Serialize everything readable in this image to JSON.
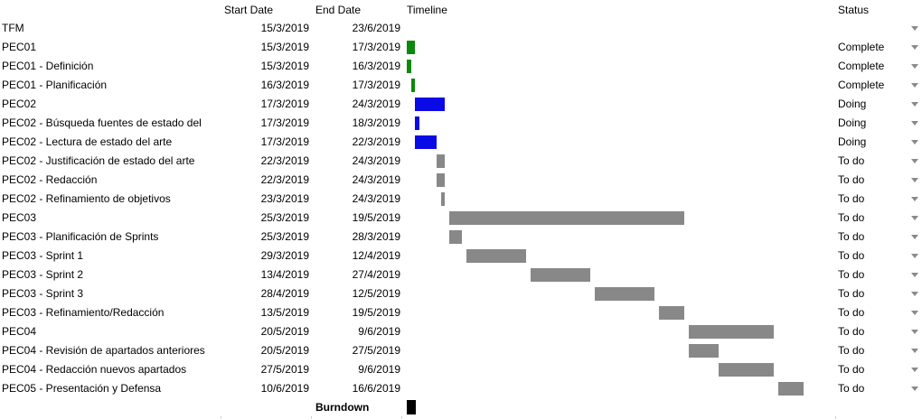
{
  "headers": {
    "start": "Start Date",
    "end": "End Date",
    "timeline": "Timeline",
    "status": "Status"
  },
  "timeline_start": "15/3/2019",
  "colors": {
    "complete": "#0a8a0a",
    "doing": "#0a0ae6",
    "todo": "#888888"
  },
  "rows": [
    {
      "name": "TFM",
      "start": "15/3/2019",
      "end": "23/6/2019",
      "status": "",
      "dropdown": true
    },
    {
      "name": "PEC01",
      "start": "15/3/2019",
      "end": "17/3/2019",
      "status": "Complete",
      "dropdown": true
    },
    {
      "name": "PEC01 - Definición",
      "start": "15/3/2019",
      "end": "16/3/2019",
      "status": "Complete",
      "dropdown": true
    },
    {
      "name": "PEC01 - Planificación",
      "start": "16/3/2019",
      "end": "17/3/2019",
      "status": "Complete",
      "dropdown": true
    },
    {
      "name": "PEC02",
      "start": "17/3/2019",
      "end": "24/3/2019",
      "status": "Doing",
      "dropdown": true
    },
    {
      "name": "PEC02 - Búsqueda fuentes de estado del",
      "start": "17/3/2019",
      "end": "18/3/2019",
      "status": "Doing",
      "dropdown": true
    },
    {
      "name": "PEC02 - Lectura de estado del arte",
      "start": "17/3/2019",
      "end": "22/3/2019",
      "status": "Doing",
      "dropdown": true
    },
    {
      "name": "PEC02 - Justificación de estado del arte",
      "start": "22/3/2019",
      "end": "24/3/2019",
      "status": "To do",
      "dropdown": true
    },
    {
      "name": "PEC02 - Redacción",
      "start": "22/3/2019",
      "end": "24/3/2019",
      "status": "To do",
      "dropdown": true
    },
    {
      "name": "PEC02 - Refinamiento de objetivos",
      "start": "23/3/2019",
      "end": "24/3/2019",
      "status": "To do",
      "dropdown": true
    },
    {
      "name": "PEC03",
      "start": "25/3/2019",
      "end": "19/5/2019",
      "status": "To do",
      "dropdown": true
    },
    {
      "name": "PEC03 - Planificación de Sprints",
      "start": "25/3/2019",
      "end": "28/3/2019",
      "status": "To do",
      "dropdown": true
    },
    {
      "name": "PEC03 - Sprint 1",
      "start": "29/3/2019",
      "end": "12/4/2019",
      "status": "To do",
      "dropdown": true
    },
    {
      "name": "PEC03 - Sprint 2",
      "start": "13/4/2019",
      "end": "27/4/2019",
      "status": "To do",
      "dropdown": true
    },
    {
      "name": "PEC03 - Sprint 3",
      "start": "28/4/2019",
      "end": "12/5/2019",
      "status": "To do",
      "dropdown": true
    },
    {
      "name": "PEC03 - Refinamiento/Redacción",
      "start": "13/5/2019",
      "end": "19/5/2019",
      "status": "To do",
      "dropdown": true
    },
    {
      "name": "PEC04",
      "start": "20/5/2019",
      "end": "9/6/2019",
      "status": "To do",
      "dropdown": true
    },
    {
      "name": "PEC04 - Revisión de apartados anteriores",
      "start": "20/5/2019",
      "end": "27/5/2019",
      "status": "To do",
      "dropdown": true
    },
    {
      "name": "PEC04 - Redacción nuevos apartados",
      "start": "27/5/2019",
      "end": "9/6/2019",
      "status": "To do",
      "dropdown": true
    },
    {
      "name": "PEC05 - Presentación y Defensa",
      "start": "10/6/2019",
      "end": "16/6/2019",
      "status": "To do",
      "dropdown": true
    }
  ],
  "burndown": {
    "label": "Burndown"
  }
}
